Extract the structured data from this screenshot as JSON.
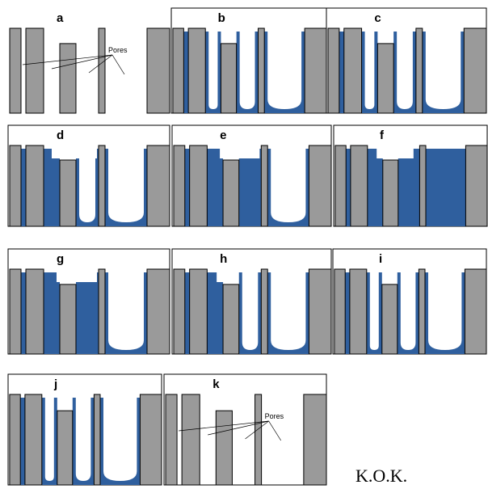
{
  "panels": [
    {
      "label": "a"
    },
    {
      "label": "b"
    },
    {
      "label": "c"
    },
    {
      "label": "d"
    },
    {
      "label": "e"
    },
    {
      "label": "f"
    },
    {
      "label": "g"
    },
    {
      "label": "h"
    },
    {
      "label": "i"
    },
    {
      "label": "j"
    },
    {
      "label": "k"
    }
  ],
  "annotations": {
    "pores_a": "Pores",
    "pores_k": "Pores"
  },
  "signature": "K.O.K."
}
